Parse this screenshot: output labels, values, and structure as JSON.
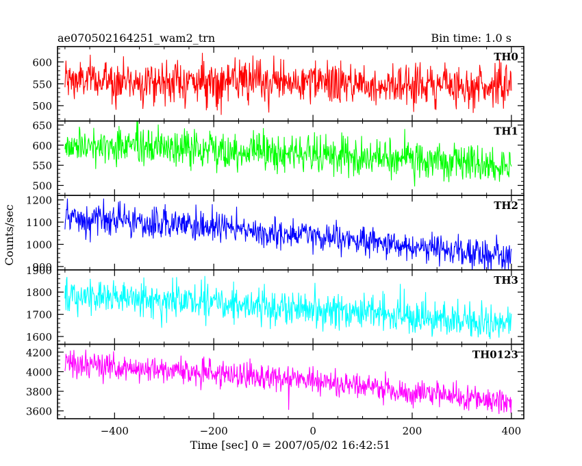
{
  "header": {
    "title": "ae070502164251_wam2_trn",
    "bin_time": "Bin time: 1.0 s"
  },
  "chart_data": {
    "type": "line",
    "title": "ae070502164251_wam2_trn",
    "subtitle": "Bin time: 1.0 s",
    "xlabel": "Time [sec] 0 = 2007/05/02 16:42:51",
    "ylabel": "Counts/sec",
    "xlim": [
      -515,
      425
    ],
    "x_ticks": [
      -400,
      -200,
      0,
      200,
      400
    ],
    "x_tick_labels": [
      "−400",
      "−200",
      "0",
      "200",
      "400"
    ],
    "bin_time_s": 1.0,
    "x_start": -500,
    "x_end": 400,
    "grid": false,
    "legend": "none",
    "panels": [
      {
        "name": "TH0",
        "color": "#ff0000",
        "ylim": [
          465,
          635
        ],
        "y_ticks": [
          500,
          550,
          600
        ],
        "trend": [
          [
            -500,
            558
          ],
          [
            -300,
            556
          ],
          [
            0,
            552
          ],
          [
            200,
            548
          ],
          [
            400,
            545
          ]
        ],
        "noise_sigma": 24
      },
      {
        "name": "TH1",
        "color": "#00ff00",
        "ylim": [
          475,
          660
        ],
        "y_ticks": [
          500,
          550,
          600,
          650
        ],
        "trend": [
          [
            -500,
            600
          ],
          [
            -200,
            590
          ],
          [
            0,
            578
          ],
          [
            200,
            562
          ],
          [
            400,
            545
          ]
        ],
        "noise_sigma": 24
      },
      {
        "name": "TH2",
        "color": "#0000ff",
        "ylim": [
          885,
          1220
        ],
        "y_ticks": [
          900,
          1000,
          1100,
          1200
        ],
        "trend": [
          [
            -500,
            1115
          ],
          [
            -200,
            1075
          ],
          [
            0,
            1035
          ],
          [
            200,
            990
          ],
          [
            400,
            945
          ]
        ],
        "noise_sigma": 35
      },
      {
        "name": "TH3",
        "color": "#00ffff",
        "ylim": [
          1565,
          1900
        ],
        "y_ticks": [
          1600,
          1700,
          1800,
          1900
        ],
        "trend": [
          [
            -500,
            1780
          ],
          [
            -200,
            1755
          ],
          [
            0,
            1725
          ],
          [
            200,
            1690
          ],
          [
            400,
            1650
          ]
        ],
        "noise_sigma": 40
      },
      {
        "name": "TH0123",
        "color": "#ff00ff",
        "ylim": [
          3520,
          4280
        ],
        "y_ticks": [
          3600,
          3800,
          4000,
          4200
        ],
        "trend": [
          [
            -500,
            4080
          ],
          [
            -200,
            3990
          ],
          [
            0,
            3900
          ],
          [
            200,
            3790
          ],
          [
            400,
            3680
          ]
        ],
        "noise_sigma": 70
      }
    ]
  }
}
